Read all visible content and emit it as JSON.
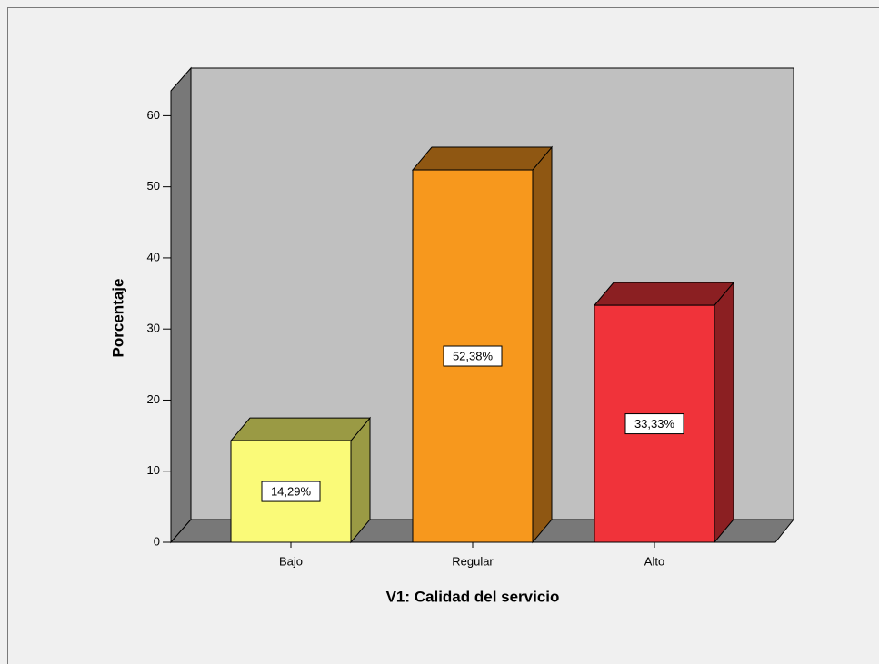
{
  "chart_data": {
    "type": "bar3d",
    "categories": [
      "Bajo",
      "Regular",
      "Alto"
    ],
    "values": [
      14.29,
      52.38,
      33.33
    ],
    "value_labels": [
      "14,29%",
      "52,38%",
      "33,33%"
    ],
    "colors": [
      "#fafa78",
      "#f7981d",
      "#f0333a"
    ],
    "side_colors": [
      "#9a9a44",
      "#8f5712",
      "#8b1f22"
    ],
    "x_label": "V1: Calidad del servicio",
    "y_label": "Porcentaje",
    "ylim": [
      0,
      63.5
    ],
    "yticks": [
      0,
      10,
      20,
      30,
      40,
      50,
      60
    ],
    "grid": false
  }
}
